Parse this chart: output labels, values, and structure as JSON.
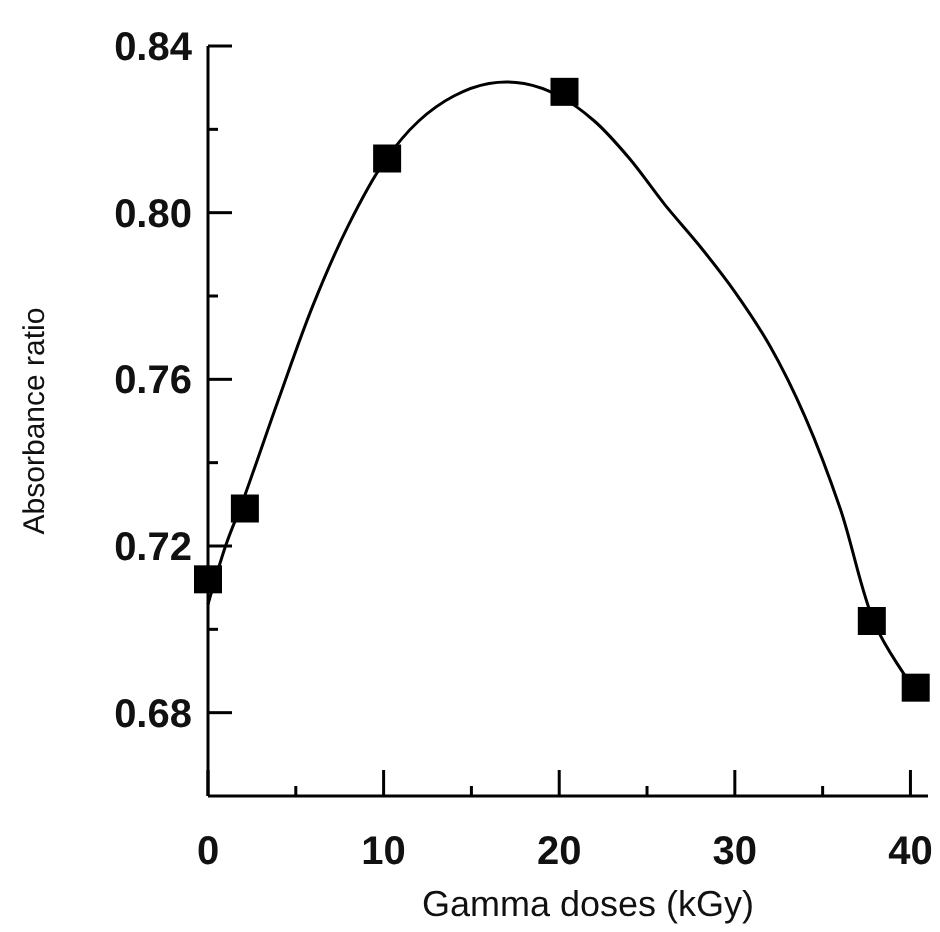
{
  "chart_data": {
    "type": "scatter",
    "xlabel": "Gamma doses (kGy)",
    "ylabel": "Absorbance ratio",
    "xlim": [
      0,
      41
    ],
    "ylim": [
      0.66,
      0.84
    ],
    "xticks": [
      0,
      {
        "value": 5,
        "label": null
      },
      10,
      {
        "value": 15,
        "label": null
      },
      20,
      {
        "value": 25,
        "label": null
      },
      30,
      {
        "value": 35,
        "label": null
      },
      40
    ],
    "yticks": [
      {
        "value": 0.68,
        "label": "0.68"
      },
      {
        "value": 0.7,
        "label": null
      },
      {
        "value": 0.72,
        "label": "0.72"
      },
      {
        "value": 0.74,
        "label": null
      },
      {
        "value": 0.76,
        "label": "0.76"
      },
      {
        "value": 0.78,
        "label": null
      },
      {
        "value": 0.8,
        "label": "0.80"
      },
      {
        "value": 0.82,
        "label": null
      },
      {
        "value": 0.84,
        "label": "0.84"
      }
    ],
    "series": [
      {
        "color": "#000000",
        "marker": "square",
        "x": [
          0,
          2.1,
          10.2,
          20.3,
          37.8,
          40.3
        ],
        "values": [
          0.712,
          0.729,
          0.813,
          0.829,
          0.702,
          0.686
        ]
      },
      {
        "type": "line",
        "color": "#000000",
        "marker": "none",
        "line_style": "solid",
        "x": [
          0,
          1,
          2,
          4,
          6,
          8,
          10,
          12,
          14,
          16,
          18,
          20,
          22,
          24,
          26,
          28,
          30,
          32,
          34,
          36,
          38,
          40
        ],
        "values": [
          0.706,
          0.72,
          0.731,
          0.755,
          0.778,
          0.797,
          0.812,
          0.822,
          0.828,
          0.831,
          0.831,
          0.828,
          0.822,
          0.813,
          0.802,
          0.792,
          0.781,
          0.768,
          0.751,
          0.729,
          0.701,
          0.687
        ]
      }
    ]
  }
}
